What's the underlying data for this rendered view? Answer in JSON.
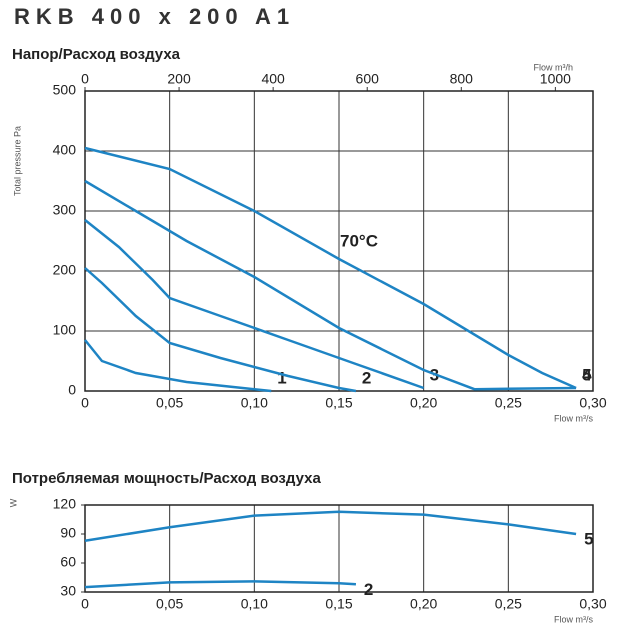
{
  "title": "RKB 400 x 200 A1",
  "chart_data": [
    {
      "type": "line",
      "title": "Напор/Расход воздуха",
      "x_label": "Flow m³/s",
      "y_label": "Total pressure Pa",
      "x2_label": "Flow m³/h",
      "annotation": "70°C",
      "xlim": [
        0,
        0.3
      ],
      "ylim": [
        0,
        500
      ],
      "x2lim": [
        0,
        1080
      ],
      "xticks": [
        0,
        {
          "value": 0.05,
          "label": "0,05"
        },
        {
          "value": 0.1,
          "label": "0,10"
        },
        {
          "value": 0.15,
          "label": "0,15"
        },
        {
          "value": 0.2,
          "label": "0,20"
        },
        {
          "value": 0.25,
          "label": "0,25"
        },
        {
          "value": 0.3,
          "label": "0,30"
        }
      ],
      "yticks": [
        0,
        100,
        200,
        300,
        400,
        500
      ],
      "x2ticks": [
        0,
        200,
        400,
        600,
        800,
        1000
      ],
      "grid": "both",
      "series": [
        {
          "name": "1",
          "color": "#1e84c4",
          "x": [
            0,
            0.01,
            0.03,
            0.06,
            0.1,
            0.11
          ],
          "values": [
            85,
            50,
            30,
            15,
            3,
            0
          ]
        },
        {
          "name": "2",
          "color": "#1e84c4",
          "x": [
            0,
            0.01,
            0.03,
            0.05,
            0.08,
            0.12,
            0.15,
            0.16
          ],
          "values": [
            205,
            180,
            125,
            80,
            55,
            25,
            5,
            0
          ]
        },
        {
          "name": "3",
          "color": "#1e84c4",
          "x": [
            0,
            0.02,
            0.04,
            0.05,
            0.08,
            0.12,
            0.16,
            0.2
          ],
          "values": [
            285,
            240,
            185,
            155,
            125,
            85,
            45,
            5
          ]
        },
        {
          "name": "4",
          "color": "#1e84c4",
          "x": [
            0,
            0.03,
            0.06,
            0.1,
            0.15,
            0.2,
            0.23,
            0.29
          ],
          "values": [
            350,
            300,
            250,
            190,
            105,
            35,
            3,
            5
          ]
        },
        {
          "name": "5",
          "color": "#1e84c4",
          "x": [
            0,
            0.05,
            0.1,
            0.15,
            0.2,
            0.25,
            0.27,
            0.29
          ],
          "values": [
            405,
            370,
            300,
            220,
            145,
            60,
            30,
            5
          ]
        }
      ]
    },
    {
      "type": "line",
      "title": "Потребляемая мощность/Расход воздуха",
      "x_label": "Flow m³/s",
      "y_label": "W",
      "xlim": [
        0,
        0.3
      ],
      "ylim": [
        30,
        120
      ],
      "xticks": [
        0,
        {
          "value": 0.05,
          "label": "0,05"
        },
        {
          "value": 0.1,
          "label": "0,10"
        },
        {
          "value": 0.15,
          "label": "0,15"
        },
        {
          "value": 0.2,
          "label": "0,20"
        },
        {
          "value": 0.25,
          "label": "0,25"
        },
        {
          "value": 0.3,
          "label": "0,30"
        }
      ],
      "yticks": [
        30,
        60,
        90,
        120
      ],
      "grid": "x",
      "series": [
        {
          "name": "5",
          "color": "#1e84c4",
          "x": [
            0,
            0.05,
            0.1,
            0.15,
            0.2,
            0.25,
            0.29
          ],
          "values": [
            83,
            97,
            109,
            113,
            110,
            100,
            90
          ]
        },
        {
          "name": "2",
          "color": "#1e84c4",
          "x": [
            0,
            0.05,
            0.1,
            0.15,
            0.16
          ],
          "values": [
            35,
            40,
            41,
            39,
            38
          ]
        }
      ]
    }
  ]
}
